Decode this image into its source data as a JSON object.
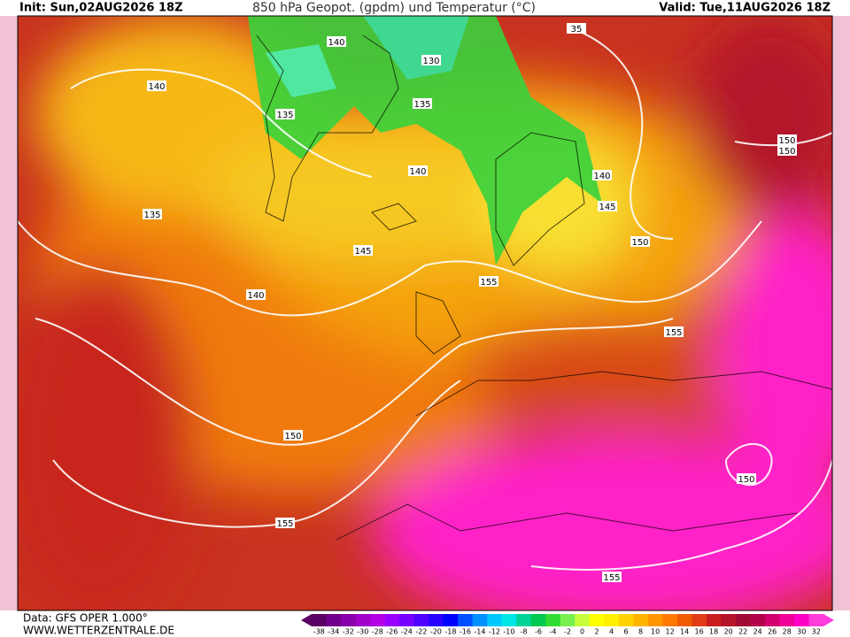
{
  "header": {
    "init": "Init: Sun,02AUG2026 18Z",
    "title": "850 hPa Geopot. (gpdm) und Temperatur (°C)",
    "valid": "Valid: Tue,11AUG2026 18Z"
  },
  "contour_labels": [
    "140",
    "130",
    "35",
    "140",
    "135",
    "135",
    "150",
    "150",
    "140",
    "140",
    "135",
    "145",
    "150",
    "145",
    "155",
    "140",
    "155",
    "150",
    "150",
    "155",
    "155"
  ],
  "footer": {
    "data": "Data: GFS OPER 1.000°",
    "site": "WWW.WETTERZENTRALE.DE"
  },
  "colorbar": {
    "labels": [
      -38,
      -34,
      -32,
      -30,
      -28,
      -26,
      -24,
      -22,
      -20,
      -18,
      -16,
      -14,
      -12,
      -10,
      -8,
      -6,
      -4,
      -2,
      0,
      2,
      4,
      6,
      8,
      10,
      12,
      14,
      16,
      18,
      20,
      22,
      24,
      26,
      28,
      30,
      32
    ],
    "colors": [
      "#5a0064",
      "#72008c",
      "#8a00aa",
      "#a000c8",
      "#b400e6",
      "#9a00ff",
      "#7800ff",
      "#5000ff",
      "#2800ff",
      "#0000ff",
      "#0050ff",
      "#0090ff",
      "#00c8ff",
      "#00e6e6",
      "#00d296",
      "#00c850",
      "#32dc32",
      "#78f050",
      "#c8ff3c",
      "#ffff00",
      "#fff000",
      "#ffd200",
      "#ffb400",
      "#ff9600",
      "#ff7800",
      "#f05a00",
      "#e03c14",
      "#c81e1e",
      "#b41428",
      "#a00a32",
      "#b4004b",
      "#d2006e",
      "#f00096",
      "#ff00c8",
      "#ff3cdc"
    ]
  }
}
